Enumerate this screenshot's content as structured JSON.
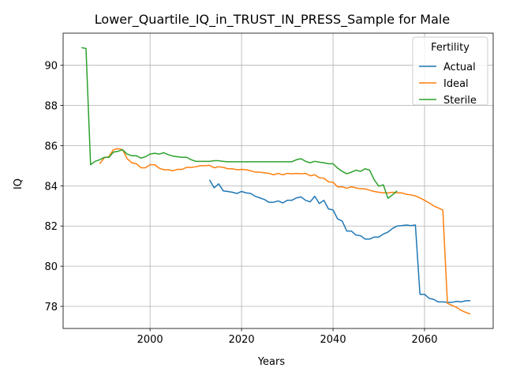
{
  "chart_data": {
    "type": "line",
    "title": "Lower_Quartile_IQ_in_TRUST_IN_PRESS_Sample for Male",
    "xlabel": "Years",
    "ylabel": "IQ",
    "xlim": [
      1981,
      2075
    ],
    "ylim": [
      76.9,
      91.6
    ],
    "xticks": [
      2000,
      2020,
      2040,
      2060
    ],
    "yticks": [
      78,
      80,
      82,
      84,
      86,
      88,
      90
    ],
    "grid": true,
    "legend": {
      "title": "Fertility",
      "position": "top-right"
    },
    "series": [
      {
        "name": "Actual",
        "color": "#1f77b4",
        "x": [
          2013,
          2014,
          2015,
          2016,
          2017,
          2018,
          2019,
          2020,
          2021,
          2022,
          2023,
          2024,
          2025,
          2026,
          2027,
          2028,
          2029,
          2030,
          2031,
          2032,
          2033,
          2034,
          2035,
          2036,
          2037,
          2038,
          2039,
          2040,
          2041,
          2042,
          2043,
          2044,
          2045,
          2046,
          2047,
          2048,
          2049,
          2050,
          2051,
          2052,
          2053,
          2054,
          2055,
          2056,
          2057,
          2058,
          2059,
          2060,
          2061,
          2062,
          2063,
          2064,
          2065,
          2066,
          2067,
          2068,
          2069,
          2070
        ],
        "y": [
          84.3,
          83.9,
          84.1,
          83.75,
          83.72,
          83.68,
          83.62,
          83.72,
          83.65,
          83.62,
          83.48,
          83.4,
          83.32,
          83.18,
          83.18,
          83.25,
          83.15,
          83.28,
          83.28,
          83.4,
          83.45,
          83.28,
          83.2,
          83.48,
          83.12,
          83.28,
          82.85,
          82.8,
          82.35,
          82.25,
          81.75,
          81.75,
          81.55,
          81.52,
          81.35,
          81.35,
          81.45,
          81.45,
          81.6,
          81.7,
          81.88,
          82.0,
          82.02,
          82.05,
          82.02,
          82.05,
          78.6,
          78.6,
          78.4,
          78.35,
          78.22,
          78.22,
          78.2,
          78.2,
          78.25,
          78.22,
          78.28,
          78.28
        ]
      },
      {
        "name": "Ideal",
        "color": "#ff7f0e",
        "x": [
          1989,
          1990,
          1991,
          1992,
          1993,
          1994,
          1995,
          1996,
          1997,
          1998,
          1999,
          2000,
          2001,
          2002,
          2003,
          2004,
          2005,
          2006,
          2007,
          2008,
          2009,
          2010,
          2011,
          2012,
          2013,
          2014,
          2015,
          2016,
          2017,
          2018,
          2019,
          2020,
          2021,
          2022,
          2023,
          2024,
          2025,
          2026,
          2027,
          2028,
          2029,
          2030,
          2031,
          2032,
          2033,
          2034,
          2035,
          2036,
          2037,
          2038,
          2039,
          2040,
          2041,
          2042,
          2043,
          2044,
          2045,
          2046,
          2047,
          2048,
          2049,
          2050,
          2051,
          2052,
          2053,
          2054,
          2055,
          2056,
          2057,
          2058,
          2059,
          2060,
          2061,
          2062,
          2063,
          2064,
          2065,
          2066,
          2067,
          2068,
          2069,
          2070
        ],
        "y": [
          85.1,
          85.4,
          85.45,
          85.8,
          85.85,
          85.8,
          85.35,
          85.15,
          85.1,
          84.9,
          84.9,
          85.05,
          85.05,
          84.88,
          84.8,
          84.8,
          84.75,
          84.82,
          84.82,
          84.92,
          84.92,
          84.95,
          85.0,
          85.0,
          85.02,
          84.9,
          84.95,
          84.92,
          84.85,
          84.85,
          84.8,
          84.82,
          84.8,
          84.75,
          84.68,
          84.68,
          84.65,
          84.62,
          84.55,
          84.62,
          84.55,
          84.62,
          84.6,
          84.62,
          84.6,
          84.62,
          84.5,
          84.55,
          84.4,
          84.38,
          84.2,
          84.18,
          83.95,
          83.95,
          83.88,
          83.95,
          83.9,
          83.85,
          83.85,
          83.78,
          83.72,
          83.68,
          83.65,
          83.65,
          83.68,
          83.65,
          83.65,
          83.58,
          83.55,
          83.5,
          83.4,
          83.28,
          83.15,
          83.0,
          82.9,
          82.8,
          78.15,
          78.05,
          77.95,
          77.8,
          77.7,
          77.62
        ]
      },
      {
        "name": "Sterile",
        "color": "#2ca02c",
        "x": [
          1985,
          1986,
          1987,
          1988,
          1989,
          1990,
          1991,
          1992,
          1993,
          1994,
          1995,
          1996,
          1997,
          1998,
          1999,
          2000,
          2001,
          2002,
          2003,
          2004,
          2005,
          2006,
          2007,
          2008,
          2009,
          2010,
          2011,
          2012,
          2013,
          2014,
          2015,
          2016,
          2017,
          2018,
          2019,
          2020,
          2021,
          2022,
          2023,
          2024,
          2025,
          2026,
          2027,
          2028,
          2029,
          2030,
          2031,
          2032,
          2033,
          2034,
          2035,
          2036,
          2037,
          2038,
          2039,
          2040,
          2041,
          2042,
          2043,
          2044,
          2045,
          2046,
          2047,
          2048,
          2049,
          2050,
          2051,
          2052,
          2053,
          2054
        ],
        "y": [
          90.88,
          90.84,
          85.05,
          85.22,
          85.3,
          85.42,
          85.42,
          85.68,
          85.72,
          85.8,
          85.58,
          85.5,
          85.5,
          85.38,
          85.45,
          85.58,
          85.62,
          85.58,
          85.65,
          85.55,
          85.48,
          85.45,
          85.42,
          85.42,
          85.3,
          85.22,
          85.22,
          85.22,
          85.22,
          85.25,
          85.25,
          85.22,
          85.2,
          85.2,
          85.2,
          85.2,
          85.2,
          85.2,
          85.2,
          85.2,
          85.2,
          85.2,
          85.2,
          85.2,
          85.2,
          85.2,
          85.2,
          85.3,
          85.35,
          85.22,
          85.15,
          85.22,
          85.18,
          85.15,
          85.1,
          85.1,
          84.88,
          84.72,
          84.6,
          84.68,
          84.78,
          84.72,
          84.85,
          84.78,
          84.3,
          83.98,
          84.05,
          83.38,
          83.55,
          83.75
        ]
      }
    ]
  }
}
